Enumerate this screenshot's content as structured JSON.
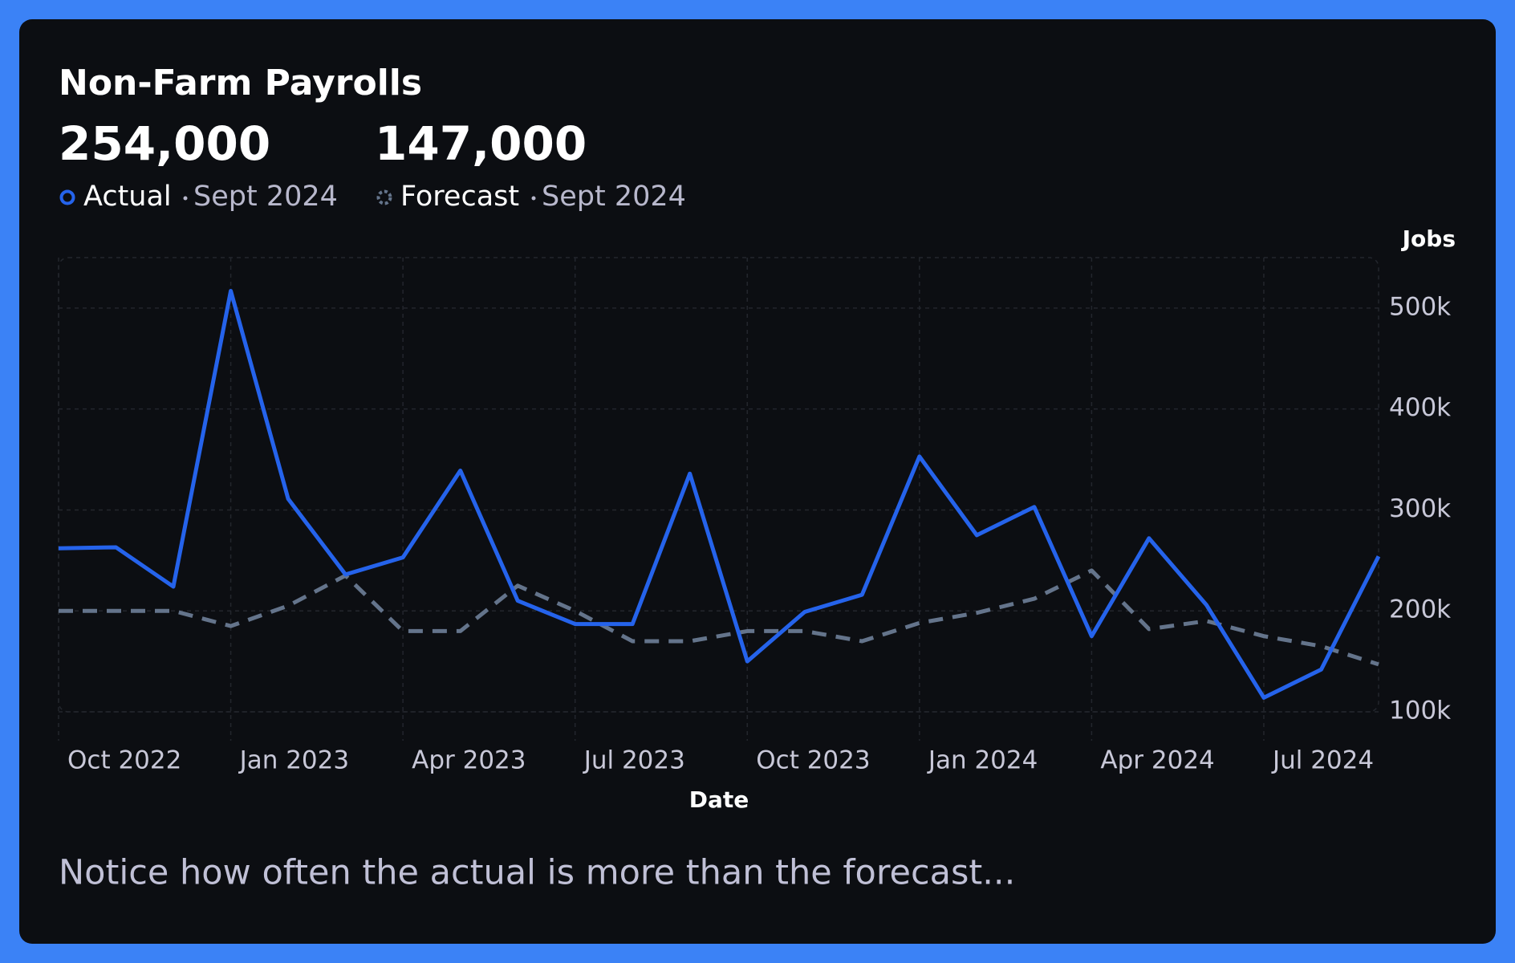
{
  "chart_data": {
    "type": "line",
    "title": "Non-Farm Payrolls",
    "headline": [
      {
        "value": "254,000",
        "period": "Sept 2024"
      },
      {
        "value": "147,000",
        "period": "Sept 2024"
      }
    ],
    "categories": [
      "Oct 2022",
      null,
      null,
      "Jan 2023",
      null,
      null,
      "Apr 2023",
      null,
      null,
      "Jul 2023",
      null,
      null,
      "Oct 2023",
      null,
      null,
      "Jan 2024",
      null,
      null,
      "Apr 2024",
      null,
      null,
      "Jul 2024",
      null,
      null
    ],
    "series": [
      {
        "name": "Actual",
        "color": "#2563eb",
        "dashed": false,
        "values": [
          262000,
          263000,
          224000,
          517000,
          311000,
          236000,
          253000,
          339000,
          210000,
          187000,
          187000,
          336000,
          150000,
          199000,
          216000,
          353000,
          275000,
          303000,
          175000,
          272000,
          206000,
          114000,
          142000,
          254000
        ]
      },
      {
        "name": "Forecast",
        "color": "#64748b",
        "dashed": true,
        "values": [
          200000,
          200000,
          200000,
          185000,
          205000,
          235000,
          180000,
          180000,
          225000,
          200000,
          170000,
          170000,
          180000,
          180000,
          170000,
          188000,
          198000,
          212000,
          240000,
          182000,
          190000,
          175000,
          165000,
          147000
        ]
      }
    ],
    "x_label": "Date",
    "y_label": "Jobs",
    "ylim": [
      100000,
      550000
    ],
    "yticks": [
      {
        "value": 100000,
        "label": "100k"
      },
      {
        "value": 200000,
        "label": "200k"
      },
      {
        "value": 300000,
        "label": "300k"
      },
      {
        "value": 400000,
        "label": "400k"
      },
      {
        "value": 500000,
        "label": "500k"
      }
    ],
    "grid": true,
    "note": "Notice how often the actual is more than the forecast..."
  }
}
